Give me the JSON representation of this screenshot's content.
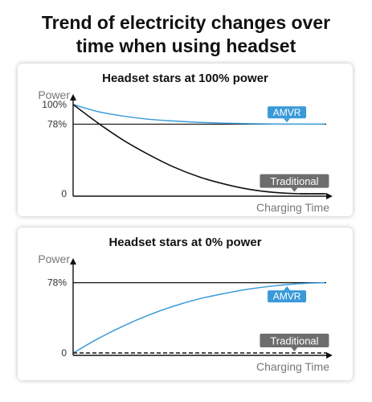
{
  "title_lines": [
    "Trend of electricity changes over",
    "time when using headset"
  ],
  "colors": {
    "amvr": "#3a9ad9",
    "traditional": "#6d6d6d",
    "axis": "#111111",
    "axis_label": "#777777"
  },
  "chart_data": [
    {
      "type": "line",
      "title": "Headset stars at 100% power",
      "xlabel": "Charging Time",
      "ylabel": "Power",
      "ylim": [
        0,
        100
      ],
      "y_ticks": [
        {
          "value": 0,
          "label": "0"
        },
        {
          "value": 78,
          "label": "78%"
        },
        {
          "value": 100,
          "label": "100%"
        }
      ],
      "reference_line": 78,
      "series": [
        {
          "name": "AMVR",
          "x": [
            0,
            10,
            20,
            30,
            40,
            50,
            60,
            70,
            80,
            90,
            100
          ],
          "values": [
            100,
            92,
            87,
            83.5,
            81.5,
            80,
            79,
            78.5,
            78.2,
            78,
            78
          ]
        },
        {
          "name": "Traditional",
          "x": [
            0,
            10,
            20,
            30,
            40,
            50,
            60,
            70,
            80,
            90,
            100
          ],
          "values": [
            100,
            79,
            60,
            44,
            30,
            19,
            11,
            5,
            1.5,
            0,
            0
          ]
        }
      ]
    },
    {
      "type": "line",
      "title": "Headset stars at 0% power",
      "xlabel": "Charging Time",
      "ylabel": "Power",
      "ylim": [
        0,
        100
      ],
      "y_ticks": [
        {
          "value": 0,
          "label": "0"
        },
        {
          "value": 78,
          "label": "78%"
        }
      ],
      "reference_line": 78,
      "series": [
        {
          "name": "AMVR",
          "x": [
            0,
            10,
            20,
            30,
            40,
            50,
            60,
            70,
            80,
            90,
            100
          ],
          "values": [
            0,
            16,
            30,
            42,
            52,
            60,
            66,
            71,
            74.5,
            77,
            78
          ]
        },
        {
          "name": "Traditional",
          "x": [
            0,
            100
          ],
          "values": [
            0,
            0
          ]
        }
      ]
    }
  ]
}
